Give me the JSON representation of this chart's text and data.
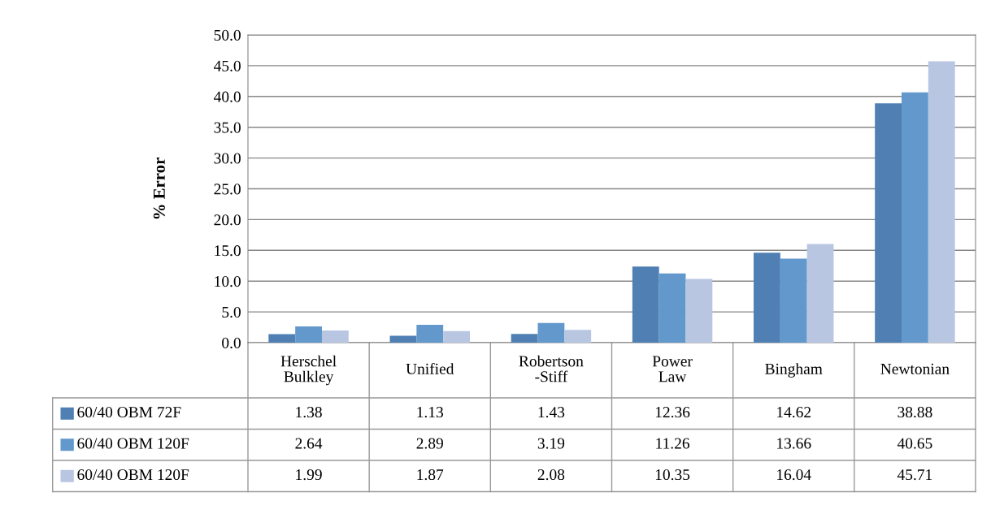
{
  "chart_data": {
    "type": "bar",
    "ylabel": "% Error",
    "categories": [
      "Herschel\nBulkley",
      "Unified",
      "Robertson\n-Stiff",
      "Power\nLaw",
      "Bingham",
      "Newtonian"
    ],
    "series": [
      {
        "name": "60/40 OBM 72F",
        "color": "#4f7fb3",
        "values": [
          1.38,
          1.13,
          1.43,
          12.36,
          14.62,
          38.88
        ]
      },
      {
        "name": "60/40 OBM 120F",
        "color": "#6298cc",
        "values": [
          2.64,
          2.89,
          3.19,
          11.26,
          13.66,
          40.65
        ]
      },
      {
        "name": "60/40 OBM 120F",
        "color": "#b8c6e2",
        "values": [
          1.99,
          1.87,
          2.08,
          10.35,
          16.04,
          45.71
        ]
      }
    ],
    "ylim": [
      0,
      50
    ],
    "yticks": [
      {
        "value": 0,
        "label": "0.0"
      },
      {
        "value": 5,
        "label": "5.0"
      },
      {
        "value": 10,
        "label": "10.0"
      },
      {
        "value": 15,
        "label": "15.0"
      },
      {
        "value": 20,
        "label": "20.0"
      },
      {
        "value": 25,
        "label": "25.0"
      },
      {
        "value": 30,
        "label": "30.0"
      },
      {
        "value": 35,
        "label": "35.0"
      },
      {
        "value": 40,
        "label": "40.0"
      },
      {
        "value": 45,
        "label": "45.0"
      },
      {
        "value": 50,
        "label": "50.0"
      }
    ],
    "grid": "y",
    "legend": "bottom left",
    "data_labels": true
  }
}
